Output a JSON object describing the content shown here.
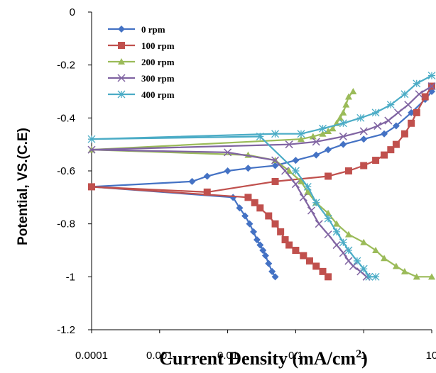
{
  "chart_data": {
    "type": "line",
    "x_scale": "log",
    "xlabel": "Current Density (mA/cm2)",
    "xlabel_main": "Current Density (mA/cm",
    "xlabel_sup": "2",
    "xlabel_close": ")",
    "ylabel": "Potential, VS.(C.E)",
    "xlim": [
      0.0001,
      10
    ],
    "ylim": [
      -1.2,
      0
    ],
    "x_ticks": [
      "0.0001",
      "0.001",
      "0.01",
      "0.1",
      "1",
      "10"
    ],
    "y_ticks": [
      "0",
      "-0.2",
      "-0.4",
      "-0.6",
      "-0.8",
      "-1",
      "-1.2"
    ],
    "legend_position": "top-left",
    "grid": false,
    "series": [
      {
        "name": "0 rpm",
        "color": "#4472C4",
        "marker": "diamond",
        "x": [
          0.0001,
          0.003,
          0.005,
          0.01,
          0.02,
          0.05,
          0.1,
          0.2,
          0.3,
          0.5,
          1,
          2,
          3,
          5,
          8,
          10,
          0.012,
          0.015,
          0.018,
          0.021,
          0.024,
          0.027,
          0.03,
          0.033,
          0.036,
          0.04,
          0.045,
          0.05
        ],
        "y": [
          -0.66,
          -0.64,
          -0.62,
          -0.6,
          -0.59,
          -0.58,
          -0.56,
          -0.54,
          -0.52,
          -0.5,
          -0.48,
          -0.46,
          -0.43,
          -0.38,
          -0.33,
          -0.3,
          -0.7,
          -0.74,
          -0.77,
          -0.8,
          -0.83,
          -0.86,
          -0.88,
          -0.9,
          -0.92,
          -0.95,
          -0.98,
          -1.0
        ]
      },
      {
        "name": "100 rpm",
        "color": "#C0504D",
        "marker": "square",
        "x": [
          0.0001,
          0.005,
          0.05,
          0.3,
          0.6,
          1,
          1.5,
          2,
          2.5,
          3,
          4,
          5,
          6,
          8,
          10,
          0.02,
          0.025,
          0.03,
          0.04,
          0.05,
          0.06,
          0.07,
          0.08,
          0.1,
          0.13,
          0.16,
          0.2,
          0.25,
          0.3
        ],
        "y": [
          -0.66,
          -0.68,
          -0.64,
          -0.62,
          -0.6,
          -0.58,
          -0.56,
          -0.54,
          -0.52,
          -0.5,
          -0.46,
          -0.42,
          -0.38,
          -0.32,
          -0.28,
          -0.7,
          -0.72,
          -0.74,
          -0.77,
          -0.8,
          -0.83,
          -0.86,
          -0.88,
          -0.9,
          -0.92,
          -0.94,
          -0.96,
          -0.98,
          -1.0
        ]
      },
      {
        "name": "200 rpm",
        "color": "#9BBB59",
        "marker": "triangle",
        "x": [
          0.0001,
          0.02,
          0.05,
          0.08,
          0.12,
          0.15,
          0.2,
          0.3,
          0.4,
          0.6,
          1,
          1.5,
          2,
          3,
          4,
          6,
          10,
          0.12,
          0.18,
          0.25,
          0.3,
          0.35,
          0.4,
          0.45,
          0.5,
          0.55,
          0.6,
          0.7
        ],
        "y": [
          -0.52,
          -0.54,
          -0.56,
          -0.6,
          -0.64,
          -0.68,
          -0.72,
          -0.76,
          -0.8,
          -0.84,
          -0.87,
          -0.9,
          -0.93,
          -0.96,
          -0.98,
          -1.0,
          -1.0,
          -0.48,
          -0.47,
          -0.46,
          -0.45,
          -0.44,
          -0.42,
          -0.4,
          -0.38,
          -0.35,
          -0.32,
          -0.3
        ]
      },
      {
        "name": "300 rpm",
        "color": "#8064A2",
        "marker": "x",
        "x": [
          0.0001,
          0.01,
          0.05,
          0.07,
          0.1,
          0.13,
          0.17,
          0.22,
          0.3,
          0.4,
          0.5,
          0.6,
          0.7,
          0.9,
          1.1,
          0.08,
          0.2,
          0.5,
          1.0,
          1.6,
          2.3,
          3.2,
          4.5,
          6.5,
          10
        ],
        "y": [
          -0.52,
          -0.53,
          -0.56,
          -0.6,
          -0.65,
          -0.7,
          -0.75,
          -0.8,
          -0.84,
          -0.88,
          -0.91,
          -0.94,
          -0.96,
          -0.98,
          -1.0,
          -0.5,
          -0.49,
          -0.47,
          -0.45,
          -0.43,
          -0.41,
          -0.38,
          -0.35,
          -0.31,
          -0.28
        ]
      },
      {
        "name": "400 rpm",
        "color": "#4BACC6",
        "marker": "asterisk",
        "x": [
          0.0001,
          0.03,
          0.1,
          0.15,
          0.2,
          0.3,
          0.4,
          0.5,
          0.6,
          0.8,
          1.0,
          1.2,
          1.5,
          0.05,
          0.12,
          0.25,
          0.5,
          0.9,
          1.5,
          2.5,
          4,
          6,
          10
        ],
        "y": [
          -0.48,
          -0.47,
          -0.6,
          -0.66,
          -0.72,
          -0.78,
          -0.83,
          -0.87,
          -0.9,
          -0.94,
          -0.97,
          -1.0,
          -1.0,
          -0.46,
          -0.46,
          -0.44,
          -0.42,
          -0.4,
          -0.38,
          -0.35,
          -0.31,
          -0.27,
          -0.24
        ]
      }
    ]
  }
}
